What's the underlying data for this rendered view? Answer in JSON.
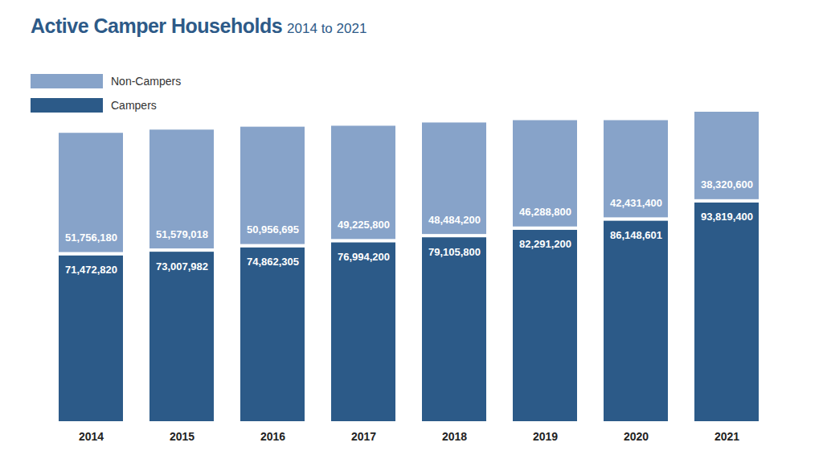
{
  "chart_data": {
    "type": "bar",
    "title": "Active Camper Households",
    "subtitle": "2014 to 2021",
    "categories": [
      "2014",
      "2015",
      "2016",
      "2017",
      "2018",
      "2019",
      "2020",
      "2021"
    ],
    "series": [
      {
        "name": "Non-Campers",
        "color": "#87a3c9",
        "values": [
          51756180,
          51579018,
          50956695,
          49225800,
          48484200,
          46288800,
          42431400,
          38320600
        ],
        "value_labels": [
          "51,756,180",
          "51,579,018",
          "50,956,695",
          "49,225,800",
          "48,484,200",
          "46,288,800",
          "42,431,400",
          "38,320,600"
        ]
      },
      {
        "name": "Campers",
        "color": "#2c5a88",
        "values": [
          71472820,
          73007982,
          74862305,
          76994200,
          79105800,
          82291200,
          86148601,
          93819400
        ],
        "value_labels": [
          "71,472,820",
          "73,007,982",
          "74,862,305",
          "76,994,200",
          "79,105,800",
          "82,291,200",
          "86,148,601",
          "93,819,400"
        ]
      }
    ],
    "stacked": true,
    "data_labels": true,
    "legend": "top-left",
    "tick_labels": "x",
    "ylim": [
      0,
      132140000
    ],
    "yticks": []
  }
}
